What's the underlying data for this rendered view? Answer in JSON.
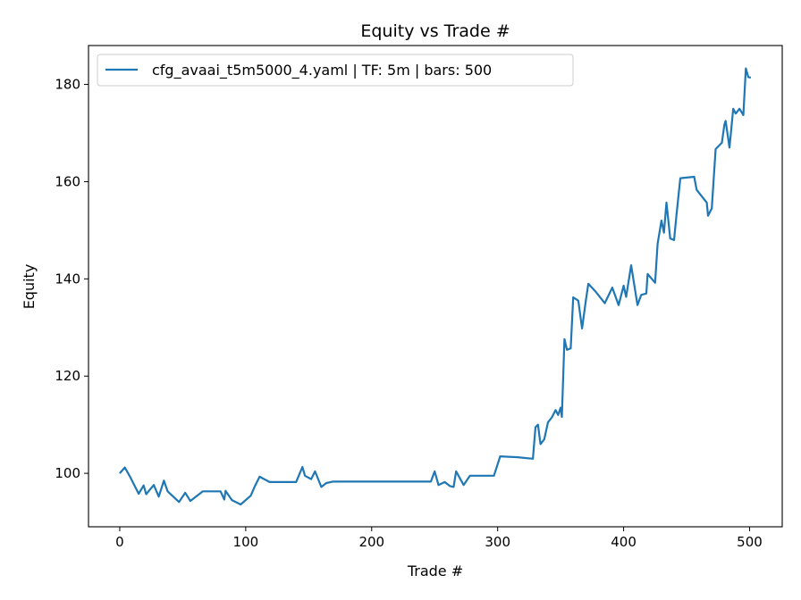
{
  "chart_data": {
    "type": "line",
    "title": "Equity vs Trade #",
    "xlabel": "Trade #",
    "ylabel": "Equity",
    "xlim": [
      -24.8,
      525.9
    ],
    "ylim": [
      89.0,
      188.0
    ],
    "xticks": [
      0,
      100,
      200,
      300,
      400,
      500
    ],
    "yticks": [
      100,
      120,
      140,
      160,
      180
    ],
    "grid": false,
    "legend_position": "top-left",
    "series": [
      {
        "name": "cfg_avaai_t5m5000_4.yaml | TF: 5m | bars: 500",
        "color": "#1f77b4",
        "points": [
          [
            0,
            100
          ],
          [
            4,
            101.2
          ],
          [
            8,
            99.4
          ],
          [
            15,
            95.8
          ],
          [
            19,
            97.5
          ],
          [
            21,
            95.7
          ],
          [
            27,
            97.6
          ],
          [
            31,
            95.2
          ],
          [
            35,
            98.5
          ],
          [
            38,
            96.3
          ],
          [
            47,
            94.1
          ],
          [
            52,
            96
          ],
          [
            56,
            94.3
          ],
          [
            66,
            96.3
          ],
          [
            80,
            96.3
          ],
          [
            83,
            94.6
          ],
          [
            84,
            96.4
          ],
          [
            89,
            94.5
          ],
          [
            96,
            93.6
          ],
          [
            104,
            95.4
          ],
          [
            107,
            97.2
          ],
          [
            111,
            99.3
          ],
          [
            119,
            98.2
          ],
          [
            140,
            98.2
          ],
          [
            145,
            101.3
          ],
          [
            147,
            99.5
          ],
          [
            152,
            98.8
          ],
          [
            155,
            100.4
          ],
          [
            160,
            97.2
          ],
          [
            164,
            98
          ],
          [
            169,
            98.3
          ],
          [
            247,
            98.3
          ],
          [
            250,
            100.4
          ],
          [
            253,
            97.6
          ],
          [
            258,
            98.2
          ],
          [
            262,
            97.4
          ],
          [
            265,
            97.2
          ],
          [
            267,
            100.4
          ],
          [
            273,
            97.6
          ],
          [
            278,
            99.5
          ],
          [
            297,
            99.5
          ],
          [
            302,
            103.5
          ],
          [
            316,
            103.3
          ],
          [
            328,
            103
          ],
          [
            330,
            109.5
          ],
          [
            332,
            110
          ],
          [
            334,
            106
          ],
          [
            337,
            107
          ],
          [
            340,
            110.5
          ],
          [
            343,
            111.5
          ],
          [
            346,
            113
          ],
          [
            348,
            112
          ],
          [
            350,
            113.5
          ],
          [
            351,
            111.6
          ],
          [
            353,
            127.6
          ],
          [
            355,
            125.4
          ],
          [
            358,
            125.7
          ],
          [
            360,
            136.2
          ],
          [
            364,
            135.5
          ],
          [
            367,
            129.8
          ],
          [
            370,
            135.5
          ],
          [
            372,
            139
          ],
          [
            378,
            137.3
          ],
          [
            385,
            135
          ],
          [
            391,
            138.2
          ],
          [
            396,
            134.6
          ],
          [
            400,
            138.6
          ],
          [
            402,
            136.3
          ],
          [
            406,
            142.8
          ],
          [
            411,
            134.6
          ],
          [
            414,
            136.7
          ],
          [
            418,
            137
          ],
          [
            419,
            141
          ],
          [
            425,
            139.2
          ],
          [
            427,
            147.2
          ],
          [
            430,
            152
          ],
          [
            432,
            149.5
          ],
          [
            434,
            155.7
          ],
          [
            437,
            148.3
          ],
          [
            440,
            148
          ],
          [
            442,
            153.3
          ],
          [
            445,
            160.7
          ],
          [
            456,
            161
          ],
          [
            458,
            158.3
          ],
          [
            466,
            155.7
          ],
          [
            467,
            153
          ],
          [
            470,
            154.5
          ],
          [
            473,
            166.7
          ],
          [
            478,
            168
          ],
          [
            480,
            171.7
          ],
          [
            481,
            172.5
          ],
          [
            484,
            167
          ],
          [
            487,
            175
          ],
          [
            489,
            174
          ],
          [
            492,
            175
          ],
          [
            495,
            173.7
          ],
          [
            497,
            183.3
          ],
          [
            499,
            181.5
          ],
          [
            501,
            181.4
          ]
        ]
      }
    ]
  }
}
